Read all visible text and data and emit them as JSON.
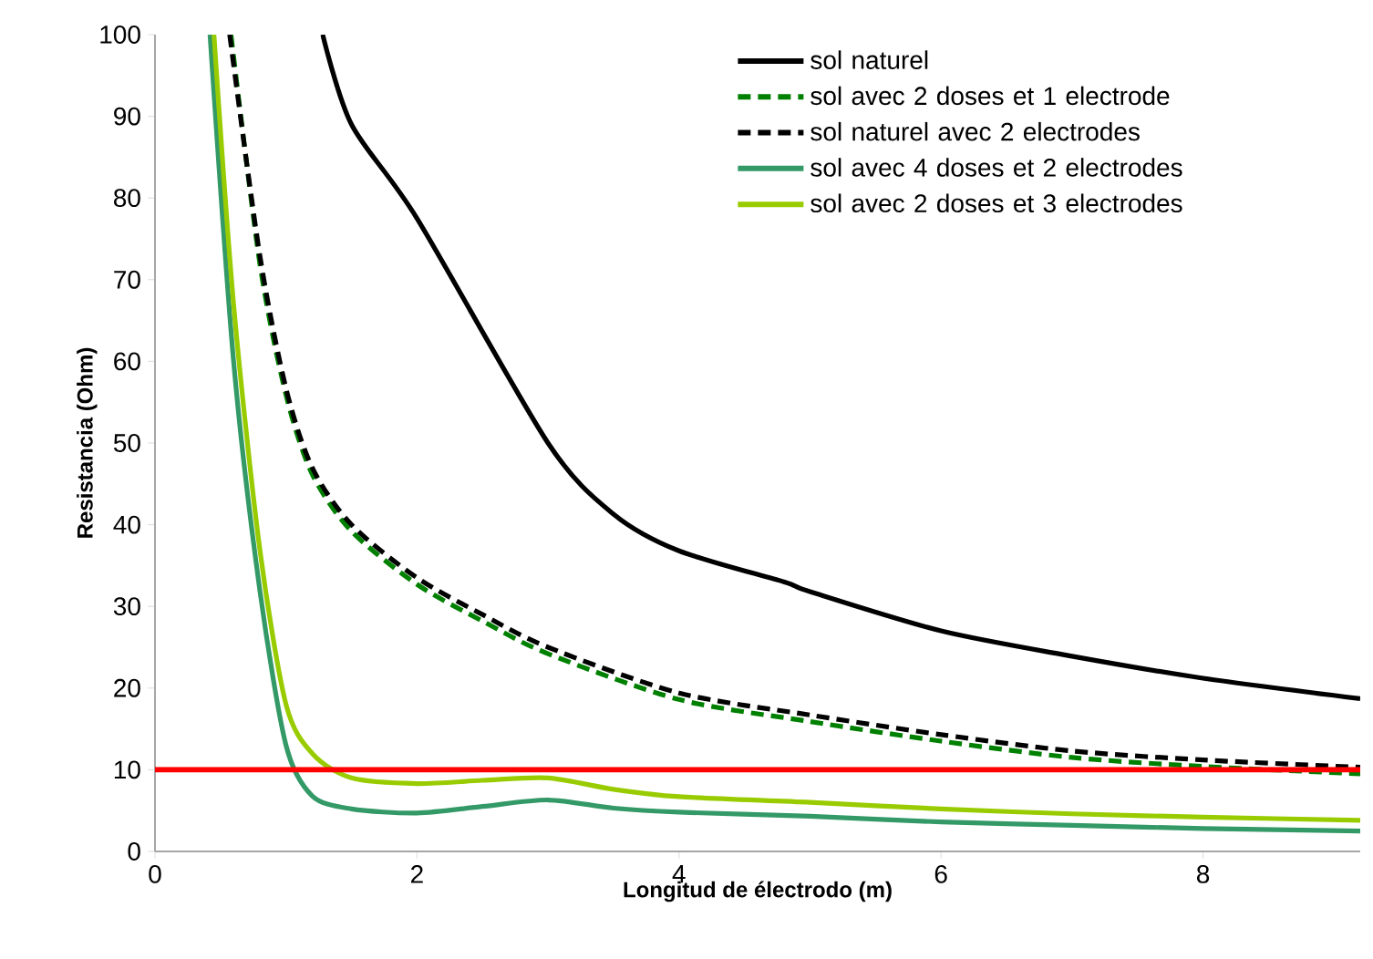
{
  "chart_data": {
    "type": "line",
    "xlabel": "Longitud de électrodo (m)",
    "ylabel": "Resistancia (Ohm)",
    "xlim": [
      0,
      9.2
    ],
    "ylim": [
      0,
      100
    ],
    "xticks": [
      0,
      2,
      4,
      6,
      8
    ],
    "yticks": [
      0,
      10,
      20,
      30,
      40,
      50,
      60,
      70,
      80,
      90,
      100
    ],
    "legend": "top right",
    "grid": false,
    "series": [
      {
        "name": "sol naturel",
        "color": "#000000",
        "line_style": "solid",
        "x": [
          1.28,
          1.5,
          2,
          3,
          3.5,
          4,
          4.8,
          5,
          6,
          7,
          8,
          9.2
        ],
        "values": [
          100,
          89,
          77.5,
          50,
          41.3,
          36.8,
          33,
          31.8,
          27,
          23.9,
          21.2,
          18.7
        ]
      },
      {
        "name": "sol avec 2 doses et 1 electrode",
        "color": "#008000",
        "line_style": "dashed",
        "x": [
          0.58,
          0.8,
          1,
          1.2,
          1.5,
          2,
          2.5,
          3,
          4,
          5,
          6,
          7,
          8,
          9.2
        ],
        "values": [
          100,
          72,
          55.9,
          46.2,
          39.2,
          32.7,
          28.2,
          24.2,
          18.6,
          15.9,
          13.5,
          11.5,
          10.4,
          9.5
        ]
      },
      {
        "name": "sol naturel avec 2 electrodes",
        "color": "#000000",
        "line_style": "dashed",
        "x": [
          0.57,
          0.8,
          1,
          1.2,
          1.5,
          2,
          2.5,
          3,
          4,
          5,
          6,
          7,
          8,
          9.2
        ],
        "values": [
          100,
          73,
          56.7,
          47,
          40,
          33.5,
          29,
          25,
          19.4,
          16.7,
          14.3,
          12.3,
          11.2,
          10.3
        ]
      },
      {
        "name": "sol avec 4 doses et 2 electrodes",
        "color": "#339966",
        "line_style": "solid",
        "x": [
          0.42,
          0.6,
          0.8,
          1,
          1.2,
          1.5,
          2,
          2.5,
          3,
          3.5,
          4,
          5,
          6,
          7,
          8,
          9.2
        ],
        "values": [
          100,
          60,
          32,
          13,
          6.8,
          5.2,
          4.7,
          5.5,
          6.3,
          5.3,
          4.8,
          4.3,
          3.6,
          3.2,
          2.8,
          2.5
        ]
      },
      {
        "name": "sol avec 2 doses et 3 electrodes",
        "color": "#99cc00",
        "line_style": "solid",
        "x": [
          0.45,
          0.6,
          0.8,
          1,
          1.2,
          1.5,
          2,
          2.5,
          3,
          3.5,
          4,
          5,
          6,
          7,
          8,
          9.2
        ],
        "values": [
          100,
          67,
          37,
          18,
          12,
          9,
          8.3,
          8.7,
          9,
          7.6,
          6.7,
          6,
          5.2,
          4.6,
          4.2,
          3.8
        ]
      }
    ],
    "ref_lines": [
      {
        "axis": "y",
        "value": 10,
        "color": "#ff0000",
        "line_style": "solid"
      }
    ]
  }
}
